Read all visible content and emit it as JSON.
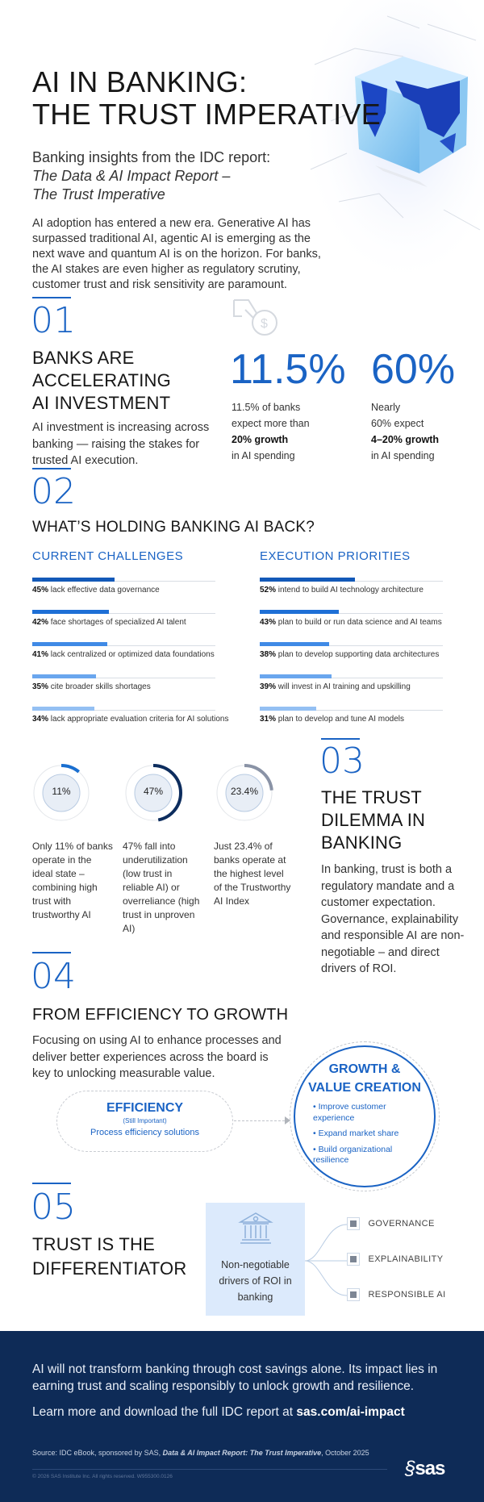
{
  "header": {
    "title_line1": "AI IN BANKING:",
    "title_line2": "THE TRUST IMPERATIVE",
    "subtitle": "Banking insights from the IDC report:",
    "report_line1": "The Data & AI Impact Report –",
    "report_line2": "The Trust Imperative",
    "intro": "AI adoption has entered a new era. Generative AI has surpassed traditional AI, agentic AI is emerging as the next wave and quantum AI is on the horizon. For banks, the AI stakes are even higher as regulatory scrutiny, customer trust and risk sensitivity are paramount.",
    "hero_image": "blue-cube-world-map"
  },
  "colors": {
    "accent": "#1a63c4",
    "navy": "#0e2b57",
    "ring_1": "#1a6fd0",
    "ring_2": "#0d2d5e",
    "ring_3": "#8a93a6"
  },
  "s1": {
    "number": "01",
    "heading": [
      "BANKS ARE",
      "ACCELERATING",
      "AI INVESTMENT"
    ],
    "body": "AI investment is increasing across banking — raising the stakes for trusted AI execution.",
    "icon": "hand-coin-icon",
    "stats": [
      {
        "value": "11.5%",
        "line1": "11.5% of banks",
        "line2": "expect more than",
        "bold": "20% growth",
        "line4": "in AI spending"
      },
      {
        "value": "60%",
        "line1": "Nearly",
        "line2": "60% expect",
        "bold": "4–20% growth",
        "line4": "in AI spending"
      }
    ]
  },
  "s2": {
    "number": "02",
    "heading": "WHAT’S HOLDING BANKING AI BACK?",
    "challenges": {
      "title": "CURRENT CHALLENGES",
      "items": [
        {
          "pct": 45,
          "pct_label": "45%",
          "text": " lack effective data governance",
          "color": "#1359b8"
        },
        {
          "pct": 42,
          "pct_label": "42%",
          "text": " face shortages of specialized AI talent",
          "color": "#1e6fd6"
        },
        {
          "pct": 41,
          "pct_label": "41%",
          "text": " lack centralized or optimized data foundations",
          "color": "#3f8ae6"
        },
        {
          "pct": 35,
          "pct_label": "35%",
          "text": " cite broader skills shortages",
          "color": "#6aa6ee"
        },
        {
          "pct": 34,
          "pct_label": "34%",
          "text": " lack appropriate evaluation criteria for AI solutions",
          "color": "#94c0f3"
        }
      ]
    },
    "priorities": {
      "title": "EXECUTION PRIORITIES",
      "items": [
        {
          "pct": 52,
          "pct_label": "52%",
          "text": " intend to build AI technology architecture",
          "color": "#1359b8"
        },
        {
          "pct": 43,
          "pct_label": "43%",
          "text": " plan to build or run data science and AI teams",
          "color": "#1e6fd6"
        },
        {
          "pct": 38,
          "pct_label": "38%",
          "text": " plan to develop supporting data architectures",
          "color": "#3f8ae6"
        },
        {
          "pct": 39,
          "pct_label": "39%",
          "text": " will invest in AI training and upskilling",
          "color": "#6aa6ee"
        },
        {
          "pct": 31,
          "pct_label": "31%",
          "text": " plan to develop and tune AI models",
          "color": "#94c0f3"
        }
      ]
    }
  },
  "s3": {
    "rings": [
      {
        "value": 11,
        "label": "11%",
        "text": "Only 11% of banks operate in the ideal state – combining high trust with trustworthy AI"
      },
      {
        "value": 47,
        "label": "47%",
        "text": "47% fall into underutilization (low trust in reliable AI) or overreliance (high trust in unproven AI)"
      },
      {
        "value": 23.4,
        "label": "23.4%",
        "text": "Just 23.4% of banks operate at the highest level of the Trustworthy AI Index"
      }
    ],
    "number": "03",
    "heading": [
      "THE TRUST",
      "DILEMMA IN",
      "BANKING"
    ],
    "body": "In banking, trust is both a regulatory mandate and a customer expectation. Governance, explainability and responsible AI are non-negotiable – and direct drivers of ROI."
  },
  "s4": {
    "number": "04",
    "heading": "FROM EFFICIENCY TO GROWTH",
    "body": "Focusing on using AI to enhance processes and deliver better experiences across the board is key to unlocking measurable value.",
    "efficiency": {
      "title": "EFFICIENCY",
      "note": "(Still Important)",
      "desc": "Process efficiency solutions"
    },
    "growth": {
      "title_line1": "GROWTH &",
      "title_line2": "VALUE CREATION",
      "items": [
        "Improve customer experience",
        "Expand market share",
        "Build organizational resilience"
      ]
    }
  },
  "s5": {
    "number": "05",
    "heading": [
      "TRUST IS THE",
      "DIFFERENTIATOR"
    ],
    "box_icon": "bank-building-icon",
    "box_text": "Non-negotiable drivers of ROI in banking",
    "pillars": [
      "GOVERNANCE",
      "EXPLAINABILITY",
      "RESPONSIBLE AI"
    ]
  },
  "footer": {
    "statement": "AI will not transform banking through cost savings alone. Its impact lies in earning trust and scaling responsibly to unlock growth and resilience.",
    "learn_prefix": "Learn more and download the full IDC report at ",
    "learn_link": "sas.com/ai-impact",
    "source_prefix": "Source: IDC eBook, sponsored by SAS, ",
    "source_title": "Data & AI Impact Report: The Trust Imperative",
    "source_suffix": ", October 2025",
    "copyright": "© 2026 SAS Institute Inc. All rights reserved. W955300.0126",
    "logo": "sas"
  }
}
